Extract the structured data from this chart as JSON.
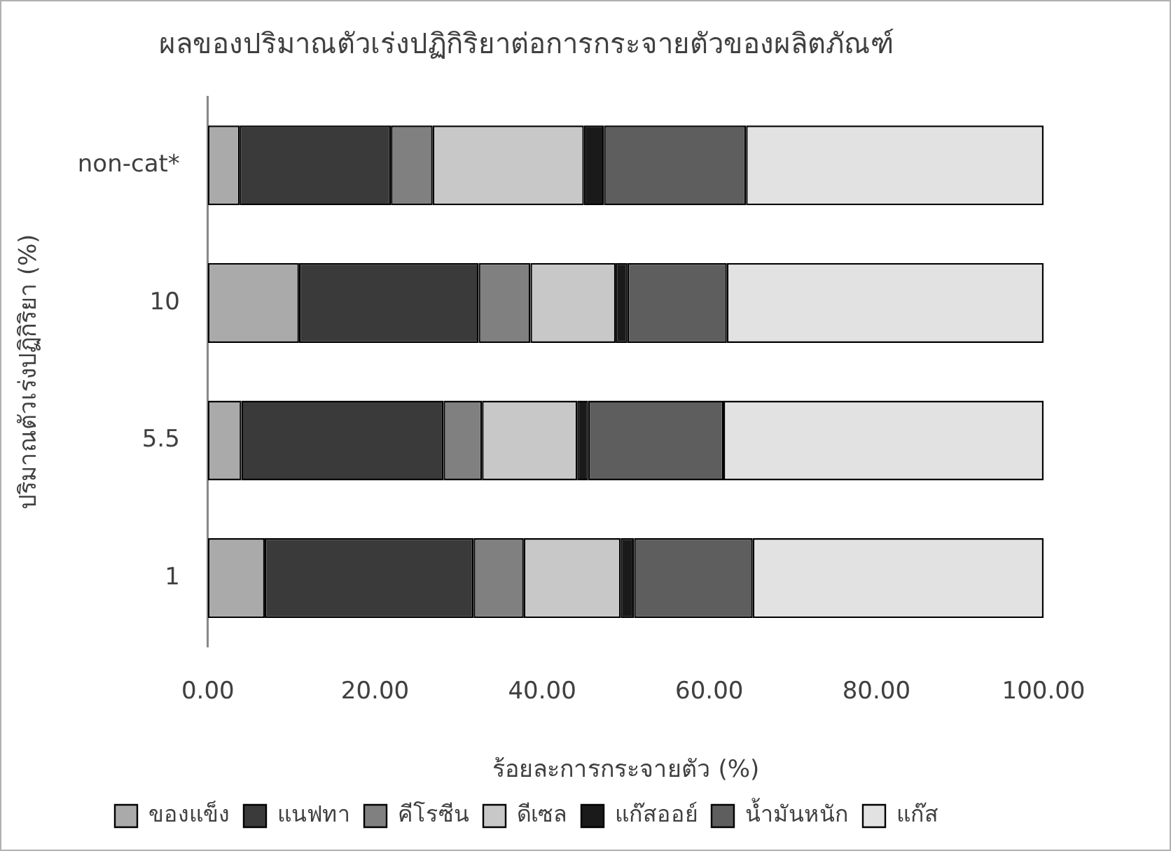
{
  "chart_data": {
    "type": "bar",
    "orientation": "horizontal",
    "stacked": true,
    "title": "ผลของปริมาณตัวเร่งปฏิกิริยาต่อการกระจายตัวของผลิตภัณฑ์",
    "xlabel": "ร้อยละการกระจายตัว (%)",
    "ylabel": "ปริมาณตัวเร่งปฏิกิริยา (%)",
    "categories": [
      "non-cat*",
      "10",
      "5.5",
      "1"
    ],
    "series": [
      {
        "name": "ของแข็ง",
        "color": "#aaaaaa",
        "values": [
          3.8,
          10.9,
          4.0,
          6.8
        ]
      },
      {
        "name": "แนฟทา",
        "color": "#3a3a3a",
        "values": [
          18.1,
          21.5,
          24.2,
          25.0
        ]
      },
      {
        "name": "คีโรซีน",
        "color": "#808080",
        "values": [
          5.0,
          6.2,
          4.6,
          6.0
        ]
      },
      {
        "name": "ดีเซล",
        "color": "#c8c8c8",
        "values": [
          18.1,
          10.2,
          11.4,
          11.6
        ]
      },
      {
        "name": "แก๊สออย์",
        "color": "#1a1a1a",
        "values": [
          2.4,
          1.4,
          1.3,
          1.6
        ]
      },
      {
        "name": "น้ำมันหนัก",
        "color": "#5e5e5e",
        "values": [
          17.0,
          11.9,
          16.2,
          14.2
        ]
      },
      {
        "name": "แก๊ส",
        "color": "#e2e2e2",
        "values": [
          35.6,
          37.9,
          38.3,
          34.8
        ]
      }
    ],
    "xlim": [
      0,
      100
    ],
    "xticks": [
      {
        "value": 0,
        "label": "0.00"
      },
      {
        "value": 20,
        "label": "20.00"
      },
      {
        "value": 40,
        "label": "40.00"
      },
      {
        "value": 60,
        "label": "60.00"
      },
      {
        "value": 80,
        "label": "80.00"
      },
      {
        "value": 100,
        "label": "100.00"
      }
    ],
    "grid": false,
    "legend": "bottom"
  }
}
